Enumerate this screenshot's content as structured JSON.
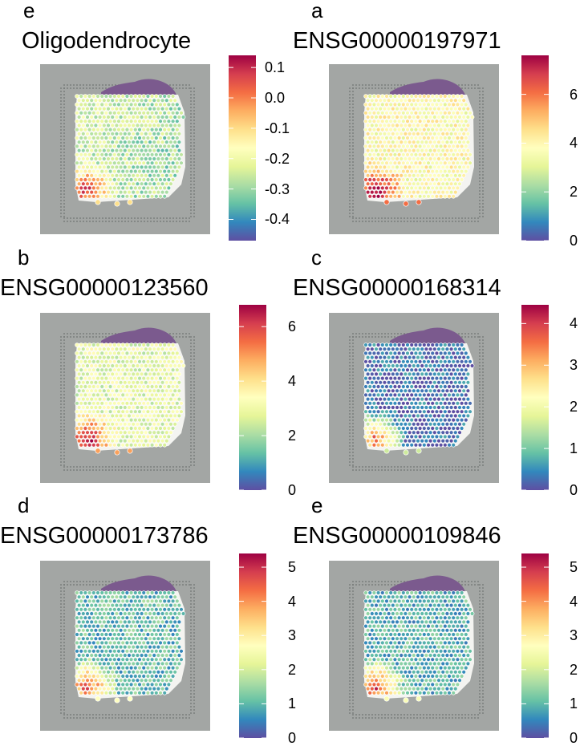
{
  "colors": {
    "palette": [
      "#5e4fa2",
      "#3288bd",
      "#66c2a5",
      "#abdda4",
      "#e6f598",
      "#ffffbf",
      "#fee08b",
      "#fdae61",
      "#f46d43",
      "#d53e4f",
      "#9e0142"
    ],
    "slide_background": "#a3a6a4",
    "tissue_cap": "#7b5a8e"
  },
  "panels": [
    {
      "letter": "e",
      "title": "Oligodendrocyte",
      "colorbar": {
        "min": -0.47,
        "max": 0.14,
        "ticks": [
          "0.1",
          "0.0",
          "-0.1",
          "-0.2",
          "-0.3",
          "-0.4"
        ],
        "tick_values": [
          0.1,
          0.0,
          -0.1,
          -0.2,
          -0.3,
          -0.4
        ]
      },
      "hotspot_level": 0.75,
      "background_level": 0.3
    },
    {
      "letter": "a",
      "title": "ENSG00000197971",
      "colorbar": {
        "min": 0,
        "max": 7.6,
        "ticks": [
          "6",
          "4",
          "2",
          "0"
        ],
        "tick_values": [
          6,
          4,
          2,
          0
        ]
      },
      "hotspot_level": 0.9,
      "background_level": 0.5
    },
    {
      "letter": "b",
      "title": "ENSG00000123560",
      "colorbar": {
        "min": 0,
        "max": 6.8,
        "ticks": [
          "6",
          "4",
          "2",
          "0"
        ],
        "tick_values": [
          6,
          4,
          2,
          0
        ]
      },
      "hotspot_level": 0.88,
      "background_level": 0.42
    },
    {
      "letter": "c",
      "title": "ENSG00000168314",
      "colorbar": {
        "min": 0,
        "max": 4.45,
        "ticks": [
          "4",
          "3",
          "2",
          "1",
          "0"
        ],
        "tick_values": [
          4,
          3,
          2,
          1,
          0
        ]
      },
      "hotspot_level": 0.72,
      "background_level": 0.06
    },
    {
      "letter": "d",
      "title": "ENSG00000173786",
      "colorbar": {
        "min": 0,
        "max": 5.4,
        "ticks": [
          "5",
          "4",
          "3",
          "2",
          "1",
          "0"
        ],
        "tick_values": [
          5,
          4,
          3,
          2,
          1,
          0
        ]
      },
      "hotspot_level": 0.78,
      "background_level": 0.2
    },
    {
      "letter": "e",
      "title": "ENSG00000109846",
      "colorbar": {
        "min": 0,
        "max": 5.4,
        "ticks": [
          "5",
          "4",
          "3",
          "2",
          "1",
          "0"
        ],
        "tick_values": [
          5,
          4,
          3,
          2,
          1,
          0
        ]
      },
      "hotspot_level": 0.8,
      "background_level": 0.18
    }
  ],
  "chart_data": [
    {
      "type": "heatmap",
      "title": "Oligodendrocyte",
      "color_scale": "spectral",
      "range": [
        -0.47,
        0.14
      ]
    },
    {
      "type": "heatmap",
      "title": "ENSG00000197971",
      "color_scale": "spectral",
      "range": [
        0,
        7.6
      ]
    },
    {
      "type": "heatmap",
      "title": "ENSG00000123560",
      "color_scale": "spectral",
      "range": [
        0,
        6.8
      ]
    },
    {
      "type": "heatmap",
      "title": "ENSG00000168314",
      "color_scale": "spectral",
      "range": [
        0,
        4.45
      ]
    },
    {
      "type": "heatmap",
      "title": "ENSG00000173786",
      "color_scale": "spectral",
      "range": [
        0,
        5.4
      ]
    },
    {
      "type": "heatmap",
      "title": "ENSG00000109846",
      "color_scale": "spectral",
      "range": [
        0,
        5.4
      ]
    }
  ]
}
